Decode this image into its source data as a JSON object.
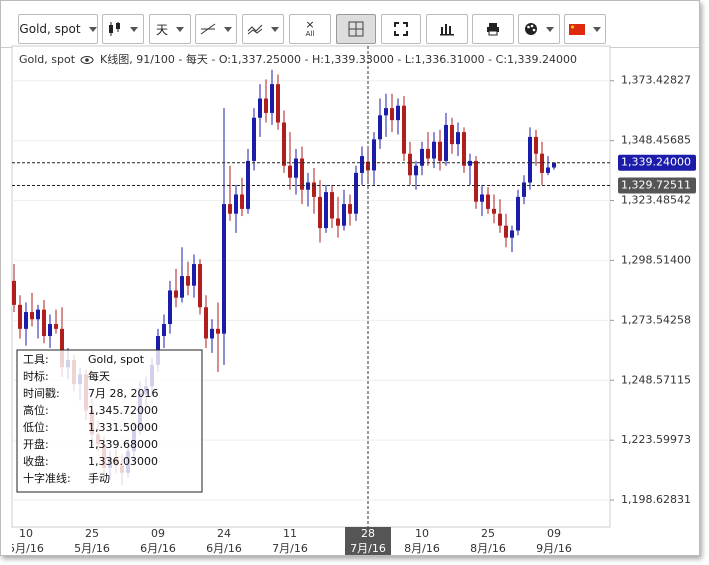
{
  "toolbar": {
    "instrument": "Gold, spot",
    "period": "天",
    "clear": "All"
  },
  "header": {
    "instrument": "Gold, spot",
    "info": "K线图, 91/100 - 每天 - O:1,337.25000 - H:1,339.33000 - L:1,336.31000 - C:1,339.24000"
  },
  "tooltip": {
    "rows": [
      [
        "工具:",
        "Gold, spot"
      ],
      [
        "时标:",
        "每天"
      ],
      [
        "时间戳:",
        "7月 28, 2016"
      ],
      [
        "高位:",
        "1,345.72000"
      ],
      [
        "低位:",
        "1,331.50000"
      ],
      [
        "开盘:",
        "1,339.68000"
      ],
      [
        "收盘:",
        "1,336.03000"
      ],
      [
        "十字准线:",
        "手动"
      ]
    ]
  },
  "chart_data": {
    "type": "candlestick",
    "up_color": "#1c1caa",
    "down_color": "#b01e1e",
    "grid": true,
    "categories": [
      null,
      null,
      {
        "day": "10",
        "month": "5月/16"
      },
      null,
      null,
      null,
      null,
      null,
      null,
      null,
      null,
      null,
      null,
      {
        "day": "25",
        "month": "5月/16"
      },
      null,
      null,
      null,
      null,
      null,
      null,
      null,
      null,
      null,
      null,
      {
        "day": "09",
        "month": "6月/16"
      },
      null,
      null,
      null,
      null,
      null,
      null,
      null,
      null,
      null,
      null,
      {
        "day": "24",
        "month": "6月/16"
      },
      null,
      null,
      null,
      null,
      null,
      null,
      null,
      null,
      null,
      null,
      {
        "day": "11",
        "month": "7月/16"
      },
      null,
      null,
      null,
      null,
      null,
      null,
      null,
      null,
      null,
      null,
      null,
      null,
      {
        "day": "28",
        "month": "7月/16",
        "highlight": true
      },
      null,
      null,
      null,
      null,
      null,
      null,
      null,
      null,
      {
        "day": "10",
        "month": "8月/16"
      },
      null,
      null,
      null,
      null,
      null,
      null,
      null,
      null,
      null,
      null,
      {
        "day": "25",
        "month": "8月/16"
      },
      null,
      null,
      null,
      null,
      null,
      null,
      null,
      null,
      null,
      null,
      {
        "day": "09",
        "month": "9月/16"
      }
    ],
    "open": [
      1290,
      1280,
      1270,
      1277,
      1274,
      1278,
      1267,
      1272,
      1270,
      1254,
      1257,
      1247,
      1251,
      1236,
      1226,
      1222,
      1212,
      1216,
      1213,
      1210,
      1219,
      1228,
      1243,
      1246,
      1255,
      1267,
      1272,
      1286,
      1283,
      1292,
      1288,
      1297,
      1279,
      1266,
      1270,
      1268,
      1322,
      1318,
      1326,
      1320,
      1340,
      1358,
      1366,
      1360,
      1372,
      1356,
      1338,
      1333,
      1341,
      1328,
      1331,
      1325,
      1312,
      1327,
      1316,
      1313,
      1322,
      1318,
      1335,
      1339.68,
      1336.03,
      1349,
      1359,
      1362,
      1357,
      1363,
      1343,
      1334,
      1338,
      1345,
      1341,
      1348,
      1340,
      1355,
      1347,
      1352,
      1338,
      1340,
      1323,
      1326,
      1320,
      1318,
      1313,
      1308,
      1311,
      1325,
      1331,
      1350,
      1343,
      1335,
      1337.25
    ],
    "high": [
      1297,
      1284,
      1281,
      1285,
      1280,
      1282,
      1276,
      1278,
      1279,
      1262,
      1259,
      1254,
      1253,
      1241,
      1232,
      1225,
      1219,
      1220,
      1218,
      1224,
      1231,
      1248,
      1250,
      1258,
      1270,
      1276,
      1290,
      1295,
      1304,
      1298,
      1301,
      1299,
      1284,
      1274,
      1281,
      1362,
      1338,
      1330,
      1333,
      1345,
      1362,
      1372,
      1374,
      1378,
      1376,
      1361,
      1352,
      1345,
      1346,
      1335,
      1337,
      1332,
      1330,
      1330,
      1325,
      1328,
      1326,
      1338,
      1346,
      1345.72,
      1352,
      1366,
      1368,
      1368,
      1366,
      1367,
      1348,
      1340,
      1348,
      1352,
      1352,
      1353,
      1360,
      1358,
      1356,
      1354,
      1343,
      1342,
      1330,
      1329,
      1326,
      1324,
      1318,
      1313,
      1328,
      1334,
      1354,
      1353,
      1348,
      1342,
      1339.33
    ],
    "low": [
      1277,
      1266,
      1263,
      1271,
      1266,
      1264,
      1262,
      1268,
      1250,
      1249,
      1244,
      1240,
      1232,
      1222,
      1219,
      1208,
      1207,
      1210,
      1205,
      1208,
      1213,
      1226,
      1238,
      1242,
      1252,
      1262,
      1268,
      1279,
      1281,
      1284,
      1283,
      1276,
      1262,
      1260,
      1252,
      1255,
      1315,
      1310,
      1317,
      1318,
      1336,
      1350,
      1356,
      1355,
      1353,
      1335,
      1328,
      1326,
      1322,
      1321,
      1318,
      1306,
      1310,
      1312,
      1308,
      1311,
      1313,
      1315,
      1330,
      1331.5,
      1330,
      1345,
      1350,
      1352,
      1351,
      1340,
      1330,
      1328,
      1334,
      1338,
      1337,
      1336,
      1338,
      1343,
      1342,
      1335,
      1330,
      1320,
      1317,
      1318,
      1314,
      1310,
      1304,
      1302,
      1309,
      1322,
      1328,
      1338,
      1330,
      1334,
      1336.31
    ],
    "close": [
      1280,
      1270,
      1277,
      1274,
      1278,
      1267,
      1272,
      1270,
      1254,
      1257,
      1247,
      1251,
      1236,
      1226,
      1222,
      1212,
      1216,
      1213,
      1210,
      1219,
      1228,
      1243,
      1246,
      1255,
      1267,
      1272,
      1286,
      1283,
      1292,
      1288,
      1297,
      1279,
      1266,
      1270,
      1268,
      1322,
      1318,
      1326,
      1320,
      1340,
      1358,
      1366,
      1360,
      1372,
      1356,
      1338,
      1333,
      1341,
      1328,
      1331,
      1325,
      1312,
      1327,
      1316,
      1313,
      1322,
      1318,
      1335,
      1342,
      1336.03,
      1349,
      1359,
      1362,
      1357,
      1363,
      1343,
      1334,
      1338,
      1345,
      1341,
      1348,
      1340,
      1355,
      1347,
      1352,
      1338,
      1340,
      1323,
      1326,
      1320,
      1318,
      1313,
      1308,
      1311,
      1325,
      1331,
      1350,
      1343,
      1335,
      1337.25,
      1339.24
    ],
    "ylim": [
      1187.4,
      1387.9
    ],
    "yticks": [
      {
        "value": 1198.62831,
        "label": "1,198.62831"
      },
      {
        "value": 1223.59973,
        "label": "1,223.59973"
      },
      {
        "value": 1248.57115,
        "label": "1,248.57115"
      },
      {
        "value": 1273.54258,
        "label": "1,273.54258"
      },
      {
        "value": 1298.514,
        "label": "1,298.51400"
      },
      {
        "value": 1323.48542,
        "label": "1,323.48542"
      },
      {
        "value": 1348.45685,
        "label": "1,348.45685"
      },
      {
        "value": 1373.42827,
        "label": "1,373.42827"
      }
    ],
    "price_line": {
      "value": 1339.24,
      "label": "1,339.24000",
      "color": "#1c1caa"
    },
    "crosshair_line": {
      "value": 1329.72511,
      "label": "1,329.72511",
      "color": "#555555"
    }
  }
}
